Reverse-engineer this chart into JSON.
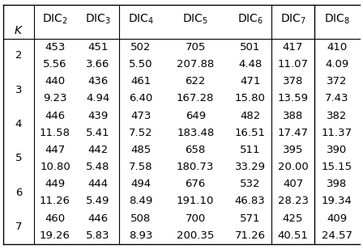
{
  "col_headers": [
    "DIC₂",
    "DIC₃",
    "DIC₄",
    "DIC₅",
    "DIC₆",
    "DIC₇",
    "DIC₈"
  ],
  "row_label": "K",
  "k_values": [
    2,
    3,
    4,
    5,
    6,
    7
  ],
  "rows": [
    [
      [
        "453",
        "5.56"
      ],
      [
        "451",
        "3.66"
      ],
      [
        "502",
        "5.50"
      ],
      [
        "705",
        "207.88"
      ],
      [
        "501",
        "4.48"
      ],
      [
        "417",
        "11.07"
      ],
      [
        "410",
        "4.09"
      ]
    ],
    [
      [
        "440",
        "9.23"
      ],
      [
        "436",
        "4.94"
      ],
      [
        "461",
        "6.40"
      ],
      [
        "622",
        "167.28"
      ],
      [
        "471",
        "15.80"
      ],
      [
        "378",
        "13.59"
      ],
      [
        "372",
        "7.43"
      ]
    ],
    [
      [
        "446",
        "11.58"
      ],
      [
        "439",
        "5.41"
      ],
      [
        "473",
        "7.52"
      ],
      [
        "649",
        "183.48"
      ],
      [
        "482",
        "16.51"
      ],
      [
        "388",
        "17.47"
      ],
      [
        "382",
        "11.37"
      ]
    ],
    [
      [
        "447",
        "10.80"
      ],
      [
        "442",
        "5.48"
      ],
      [
        "485",
        "7.58"
      ],
      [
        "658",
        "180.73"
      ],
      [
        "511",
        "33.29"
      ],
      [
        "395",
        "20.00"
      ],
      [
        "390",
        "15.15"
      ]
    ],
    [
      [
        "449",
        "11.26"
      ],
      [
        "444",
        "5.49"
      ],
      [
        "494",
        "8.49"
      ],
      [
        "676",
        "191.10"
      ],
      [
        "532",
        "46.83"
      ],
      [
        "407",
        "28.23"
      ],
      [
        "398",
        "19.34"
      ]
    ],
    [
      [
        "460",
        "19.26"
      ],
      [
        "446",
        "5.83"
      ],
      [
        "508",
        "8.93"
      ],
      [
        "700",
        "200.35"
      ],
      [
        "571",
        "71.26"
      ],
      [
        "425",
        "40.51"
      ],
      [
        "409",
        "24.57"
      ]
    ]
  ],
  "background_color": "#ffffff",
  "text_color": "#000000",
  "font_size": 9.5,
  "header_font_size": 10
}
